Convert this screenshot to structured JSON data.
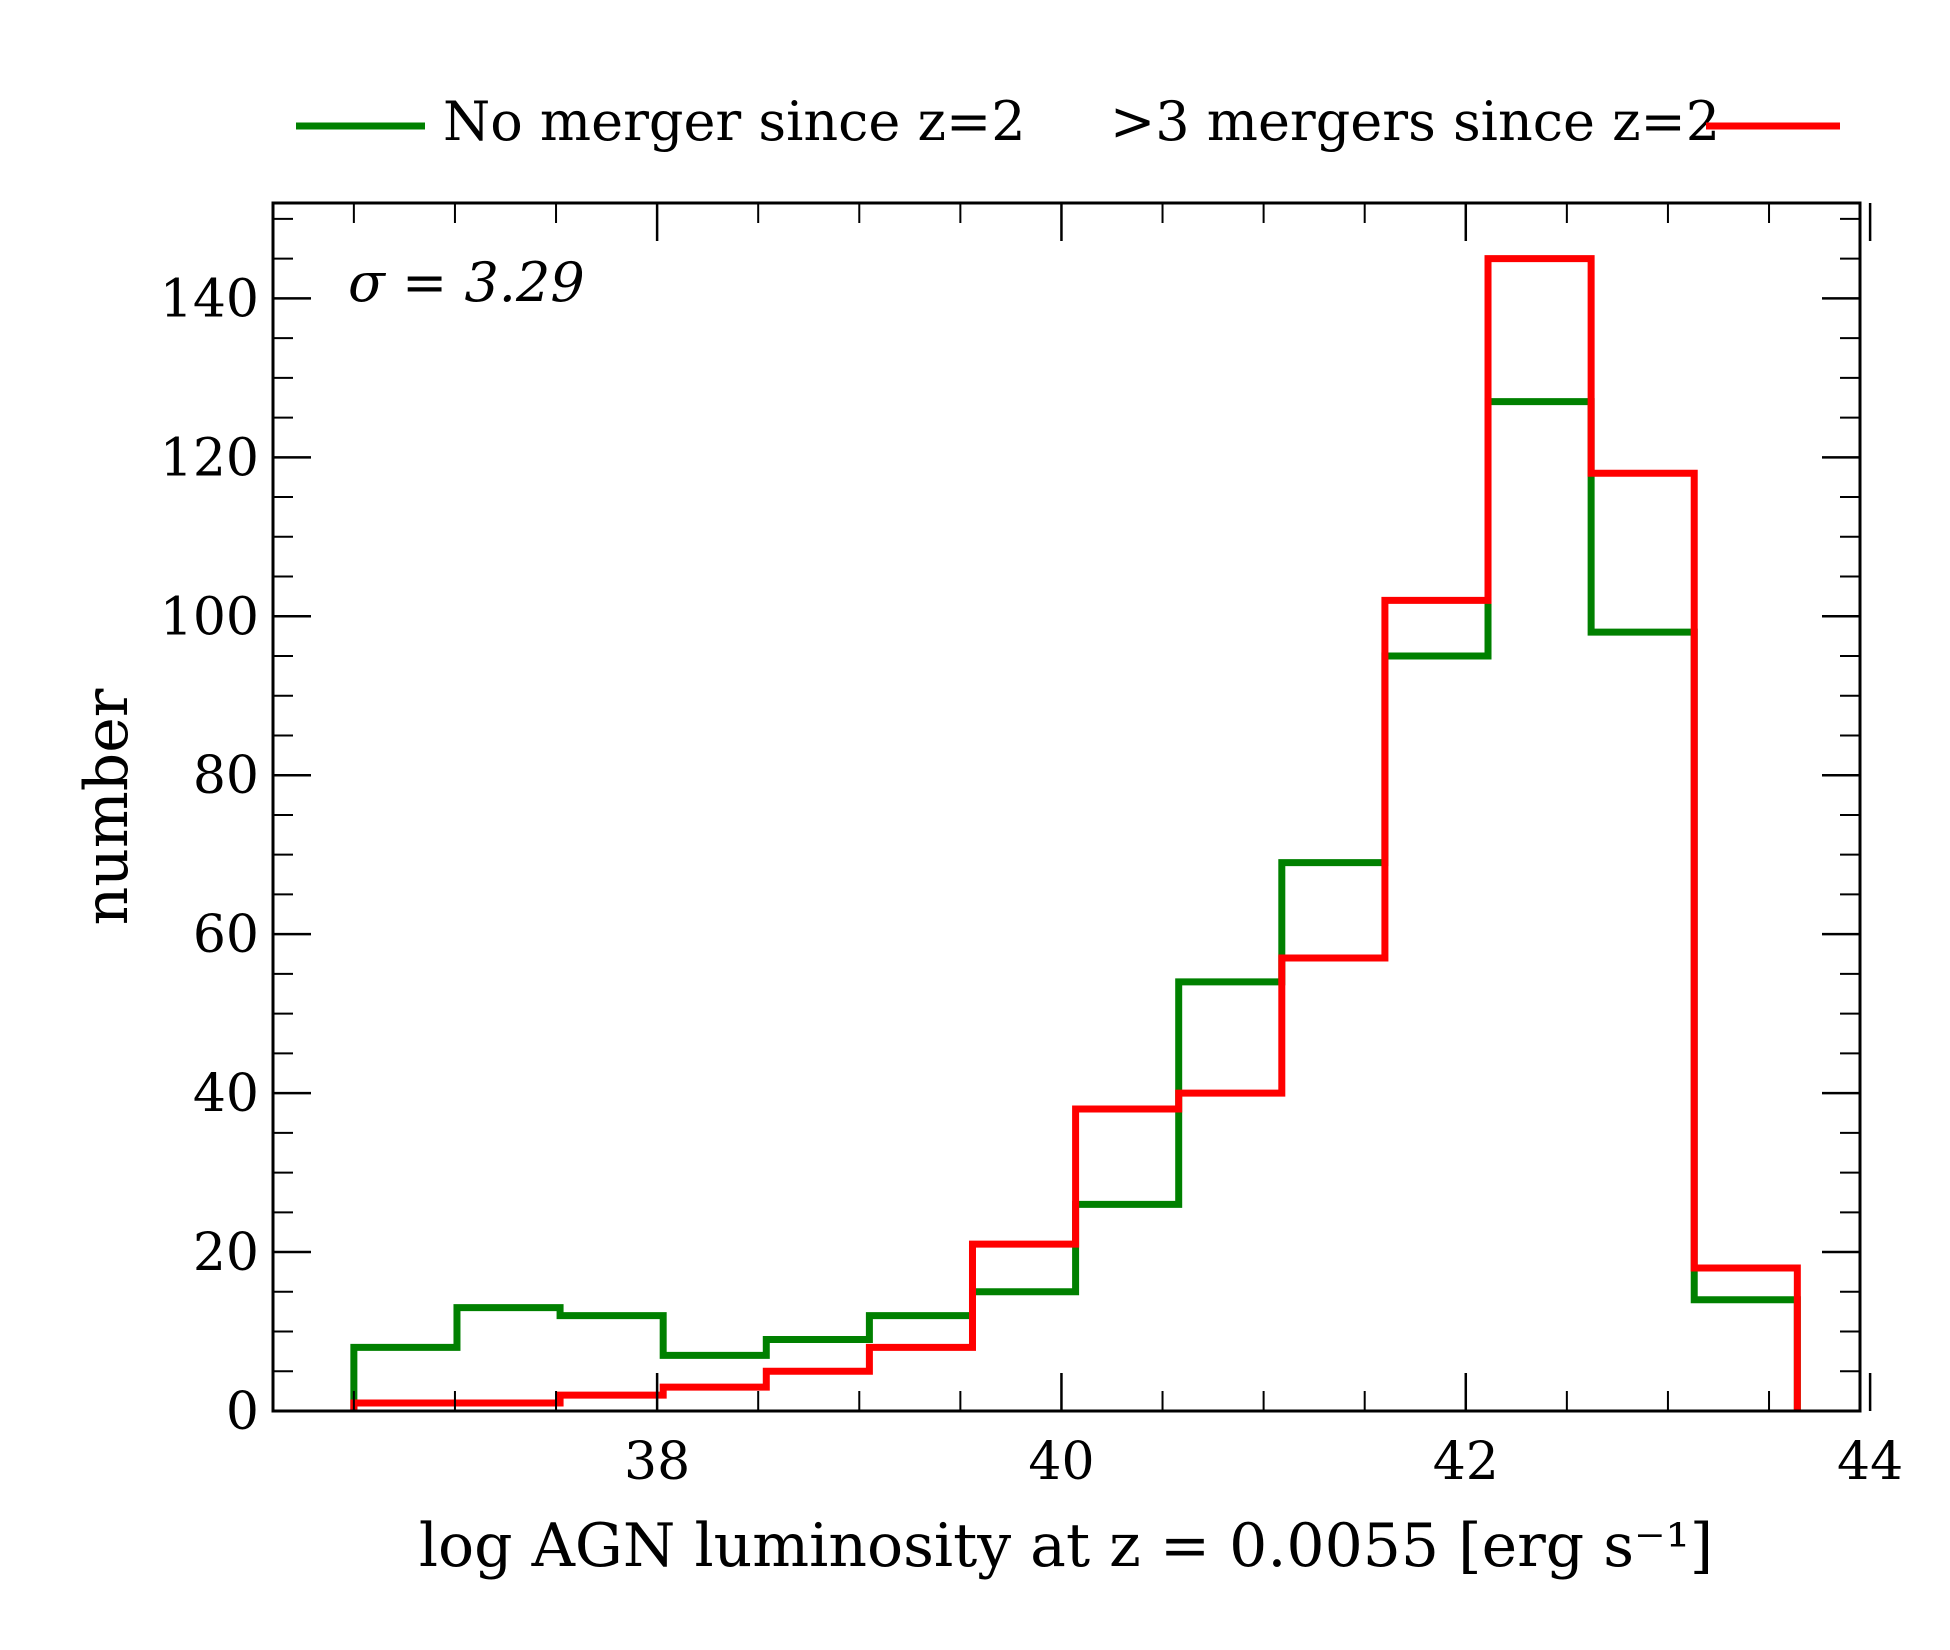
{
  "chart_data": {
    "type": "step-histogram",
    "xlabel": "log AGN luminosity at z = 0.0055 [erg s⁻¹]",
    "ylabel": "number",
    "annotation": "σ = 3.29",
    "xlim": [
      36.1,
      43.95
    ],
    "ylim": [
      0,
      152
    ],
    "xticks": [
      38,
      40,
      42,
      44
    ],
    "yticks": [
      0,
      20,
      40,
      60,
      80,
      100,
      120,
      140
    ],
    "legend_position": "above plot",
    "bin_edges": [
      36.5,
      37.01,
      37.52,
      38.03,
      38.54,
      39.05,
      39.56,
      40.07,
      40.58,
      41.09,
      41.6,
      42.11,
      42.62,
      43.13,
      43.64
    ],
    "series": [
      {
        "name": "No merger since z=2",
        "color": "#008000",
        "values": [
          8,
          13,
          12,
          7,
          9,
          12,
          15,
          26,
          54,
          69,
          95,
          127,
          98,
          14
        ]
      },
      {
        "name": ">3 mergers since z=2",
        "color": "#ff0000",
        "values": [
          1,
          1,
          2,
          3,
          5,
          8,
          21,
          38,
          40,
          57,
          102,
          145,
          118,
          18
        ]
      }
    ]
  }
}
